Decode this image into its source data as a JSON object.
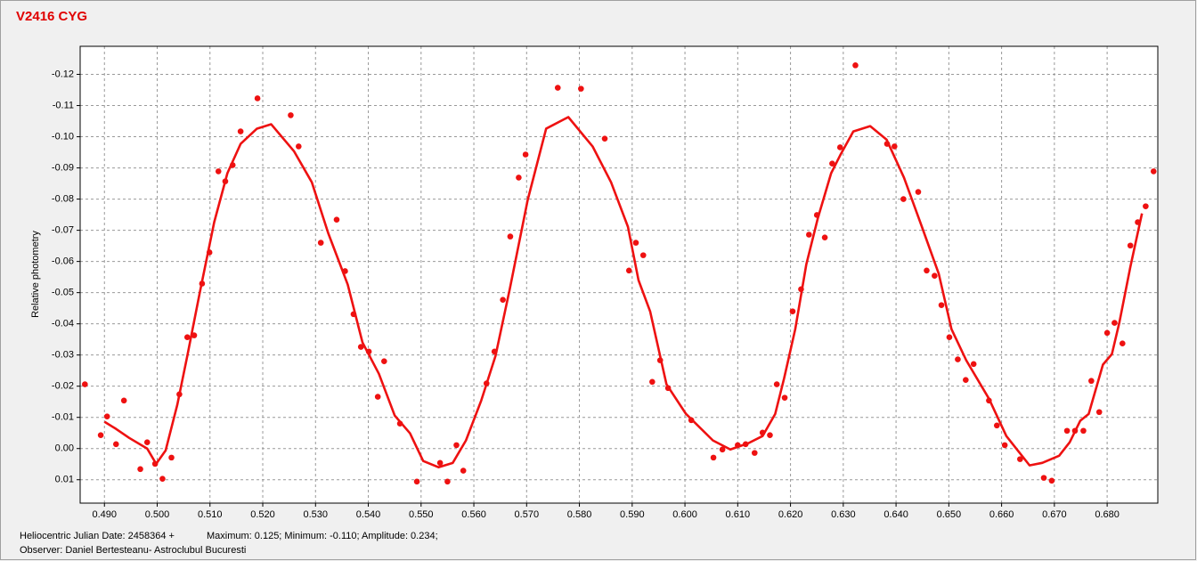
{
  "chart_data": {
    "type": "scatter",
    "title": "V2416 CYG",
    "y_label": "Relative photometry",
    "annotations": [
      "Heliocentric Julian Date: 2458364 +",
      "Maximum: 0.125; Minimum: -0.110; Amplitude: 0.234;",
      "Observer: Daniel Bertesteanu- Astroclubul Bucuresti"
    ],
    "xlim": [
      0.4854,
      0.6896
    ],
    "ylim": [
      0.0175,
      -0.129
    ],
    "grid": true,
    "xticks": [
      {
        "value": 0.49,
        "label": "0.490"
      },
      {
        "value": 0.5,
        "label": "0.500"
      },
      {
        "value": 0.51,
        "label": "0.510"
      },
      {
        "value": 0.52,
        "label": "0.520"
      },
      {
        "value": 0.53,
        "label": "0.530"
      },
      {
        "value": 0.54,
        "label": "0.540"
      },
      {
        "value": 0.55,
        "label": "0.550"
      },
      {
        "value": 0.56,
        "label": "0.560"
      },
      {
        "value": 0.57,
        "label": "0.570"
      },
      {
        "value": 0.58,
        "label": "0.580"
      },
      {
        "value": 0.59,
        "label": "0.590"
      },
      {
        "value": 0.6,
        "label": "0.600"
      },
      {
        "value": 0.61,
        "label": "0.610"
      },
      {
        "value": 0.62,
        "label": "0.620"
      },
      {
        "value": 0.63,
        "label": "0.630"
      },
      {
        "value": 0.64,
        "label": "0.640"
      },
      {
        "value": 0.65,
        "label": "0.650"
      },
      {
        "value": 0.66,
        "label": "0.660"
      },
      {
        "value": 0.67,
        "label": "0.670"
      },
      {
        "value": 0.68,
        "label": "0.680"
      }
    ],
    "yticks": [
      -0.12,
      -0.11,
      {
        "value": -0.1,
        "label": "-0.10"
      },
      -0.09,
      -0.08,
      -0.07,
      -0.06,
      -0.05,
      -0.04,
      -0.03,
      -0.02,
      -0.01,
      {
        "value": 0,
        "label": "0.00"
      },
      0.01
    ],
    "series": [
      {
        "type": "scatter",
        "color": "#ee1111",
        "x": [
          0.4863,
          0.4893,
          0.4905,
          0.4922,
          0.4937,
          0.4968,
          0.4981,
          0.4996,
          0.501,
          0.5027,
          0.5042,
          0.5057,
          0.507,
          0.5085,
          0.5099,
          0.5116,
          0.5129,
          0.5143,
          0.5158,
          0.519,
          0.5253,
          0.5268,
          0.531,
          0.534,
          0.5356,
          0.5372,
          0.5386,
          0.5401,
          0.5418,
          0.543,
          0.546,
          0.5492,
          0.5536,
          0.555,
          0.5567,
          0.558,
          0.5624,
          0.5639,
          0.5655,
          0.5669,
          0.5685,
          0.5698,
          0.5759,
          0.5803,
          0.5848,
          0.5894,
          0.5907,
          0.5921,
          0.5938,
          0.5953,
          0.5968,
          0.6012,
          0.6054,
          0.6071,
          0.61,
          0.6115,
          0.6132,
          0.6147,
          0.6161,
          0.6174,
          0.6189,
          0.6204,
          0.622,
          0.6235,
          0.625,
          0.6265,
          0.6279,
          0.6294,
          0.6323,
          0.6383,
          0.6397,
          0.6414,
          0.6442,
          0.6458,
          0.6473,
          0.6486,
          0.6501,
          0.6517,
          0.6532,
          0.6547,
          0.6576,
          0.6591,
          0.6606,
          0.6635,
          0.668,
          0.6695,
          0.6724,
          0.6739,
          0.6755,
          0.677,
          0.6785,
          0.68,
          0.6814,
          0.6829,
          0.6844,
          0.6858,
          0.6873,
          0.6888
        ],
        "values": [
          -0.0206,
          -0.0043,
          -0.0103,
          -0.0014,
          -0.0154,
          0.0066,
          -0.002,
          0.0049,
          0.0097,
          0.0029,
          -0.0174,
          -0.0357,
          -0.0363,
          -0.0529,
          -0.0629,
          -0.0889,
          -0.0857,
          -0.0909,
          -0.1017,
          -0.1123,
          -0.1069,
          -0.0969,
          -0.066,
          -0.0734,
          -0.0569,
          -0.0431,
          -0.0326,
          -0.0311,
          -0.0166,
          -0.028,
          -0.008,
          0.0106,
          0.0046,
          0.0106,
          -0.0011,
          0.0071,
          -0.0209,
          -0.0311,
          -0.0477,
          -0.068,
          -0.0869,
          -0.0943,
          -0.1157,
          -0.1154,
          -0.0994,
          -0.0571,
          -0.066,
          -0.062,
          -0.0214,
          -0.0283,
          -0.0194,
          -0.0091,
          0.0029,
          0.0003,
          -0.0011,
          -0.0014,
          0.0014,
          -0.0051,
          -0.0043,
          -0.0206,
          -0.0163,
          -0.044,
          -0.0511,
          -0.0686,
          -0.0749,
          -0.0677,
          -0.0914,
          -0.0966,
          -0.1229,
          -0.0977,
          -0.0969,
          -0.08,
          -0.0823,
          -0.0571,
          -0.0554,
          -0.046,
          -0.0357,
          -0.0286,
          -0.022,
          -0.0271,
          -0.0154,
          -0.0074,
          -0.0011,
          0.0034,
          0.0094,
          0.0103,
          -0.0057,
          -0.0057,
          -0.0057,
          -0.0217,
          -0.0117,
          -0.0371,
          -0.0403,
          -0.0337,
          -0.0651,
          -0.0726,
          -0.0777,
          -0.0889
        ]
      },
      {
        "type": "line",
        "color": "#ee1111",
        "x": [
          0.49,
          0.4922,
          0.4947,
          0.4981,
          0.4998,
          0.5016,
          0.5038,
          0.5057,
          0.5081,
          0.5108,
          0.5133,
          0.5158,
          0.5189,
          0.5216,
          0.5259,
          0.5293,
          0.5324,
          0.5361,
          0.5389,
          0.542,
          0.545,
          0.5479,
          0.5504,
          0.5533,
          0.556,
          0.5585,
          0.5614,
          0.5641,
          0.5668,
          0.5702,
          0.5737,
          0.5779,
          0.5825,
          0.586,
          0.5892,
          0.5912,
          0.5934,
          0.5965,
          0.6002,
          0.6053,
          0.6086,
          0.612,
          0.6147,
          0.6171,
          0.6188,
          0.6209,
          0.623,
          0.6252,
          0.6277,
          0.6294,
          0.6319,
          0.6351,
          0.6382,
          0.6415,
          0.6449,
          0.6481,
          0.6505,
          0.6533,
          0.6576,
          0.6609,
          0.6653,
          0.6677,
          0.6709,
          0.6729,
          0.6749,
          0.6765,
          0.6792,
          0.6809,
          0.6823,
          0.6844,
          0.6866
        ],
        "values": [
          -0.0086,
          -0.0063,
          -0.0034,
          0.0,
          0.0049,
          0.0006,
          -0.014,
          -0.0297,
          -0.0503,
          -0.0726,
          -0.0883,
          -0.0977,
          -0.1026,
          -0.104,
          -0.0954,
          -0.0854,
          -0.0691,
          -0.0526,
          -0.034,
          -0.024,
          -0.0106,
          -0.0049,
          0.004,
          0.006,
          0.0046,
          -0.0026,
          -0.0154,
          -0.0297,
          -0.0511,
          -0.0797,
          -0.1026,
          -0.1063,
          -0.0969,
          -0.0854,
          -0.0711,
          -0.054,
          -0.044,
          -0.0206,
          -0.0111,
          -0.0026,
          0.0003,
          -0.0017,
          -0.004,
          -0.0111,
          -0.0226,
          -0.0383,
          -0.0591,
          -0.074,
          -0.0883,
          -0.094,
          -0.1017,
          -0.1034,
          -0.0991,
          -0.0869,
          -0.0711,
          -0.056,
          -0.0383,
          -0.0283,
          -0.016,
          -0.004,
          0.0054,
          0.0046,
          0.0023,
          -0.002,
          -0.0089,
          -0.0111,
          -0.0269,
          -0.0303,
          -0.0403,
          -0.0583,
          -0.0754
        ]
      }
    ]
  }
}
